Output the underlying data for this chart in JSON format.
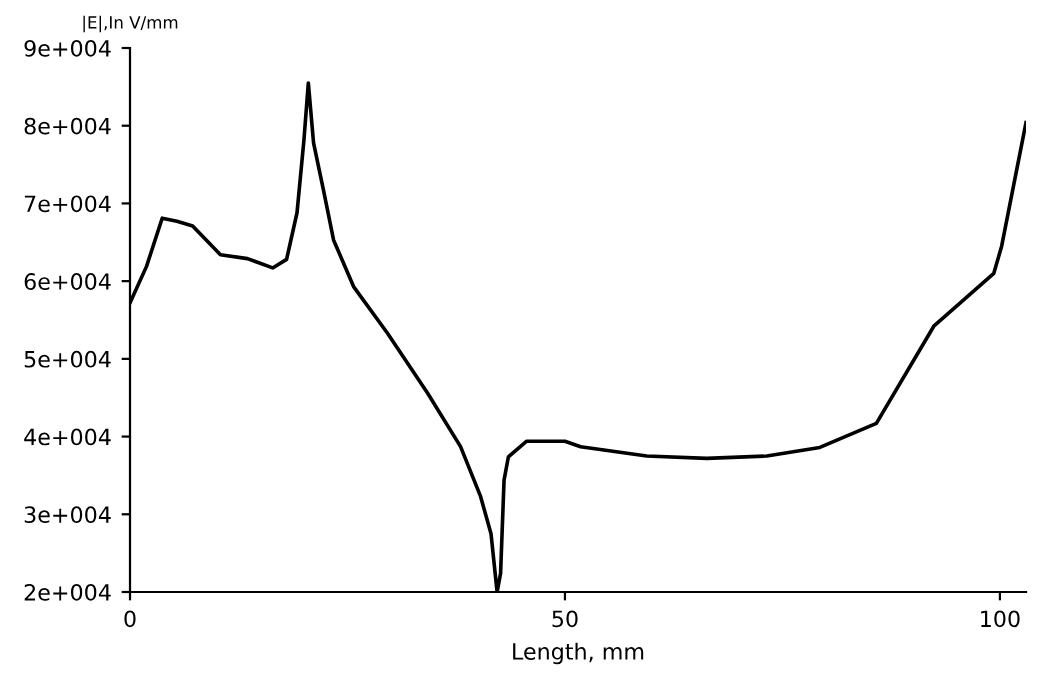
{
  "chart_data": {
    "type": "line",
    "ylabel": "|E|,In V/mm",
    "xlabel": "Length, mm",
    "x": [
      0,
      1.9,
      3.7,
      5.4,
      7.2,
      10.4,
      13.5,
      16.4,
      18,
      19.2,
      20,
      20.5,
      21.1,
      22.3,
      23.4,
      25.7,
      29.6,
      34.2,
      38,
      40.3,
      41.5,
      42.2,
      42.6,
      43,
      43.5,
      45.6,
      50,
      51.8,
      59.4,
      66.3,
      73.2,
      79.3,
      85.8,
      92.4,
      99.3,
      100.2,
      103
    ],
    "series": [
      {
        "color": "#000000",
        "values": [
          57200,
          61900,
          68100,
          67700,
          67100,
          63400,
          62900,
          61700,
          62800,
          68800,
          78200,
          85500,
          77800,
          71400,
          65300,
          59300,
          53300,
          45600,
          38700,
          32300,
          27500,
          20000,
          22400,
          34400,
          37400,
          39400,
          39400,
          38700,
          37500,
          37200,
          37500,
          38600,
          41700,
          54200,
          61000,
          64500,
          80400
        ]
      }
    ],
    "xlim": [
      0,
      103
    ],
    "ylim": [
      20000,
      90000
    ],
    "xticks": [
      0,
      50,
      100
    ],
    "yticks": [
      {
        "value": 20000,
        "label": "2e+004"
      },
      {
        "value": 30000,
        "label": "3e+004"
      },
      {
        "value": 40000,
        "label": "4e+004"
      },
      {
        "value": 50000,
        "label": "5e+004"
      },
      {
        "value": 60000,
        "label": "6e+004"
      },
      {
        "value": 70000,
        "label": "7e+004"
      },
      {
        "value": 80000,
        "label": "8e+004"
      },
      {
        "value": 90000,
        "label": "9e+004"
      }
    ],
    "grid": false,
    "legend": false,
    "marker": "none",
    "line_style": "solid"
  }
}
